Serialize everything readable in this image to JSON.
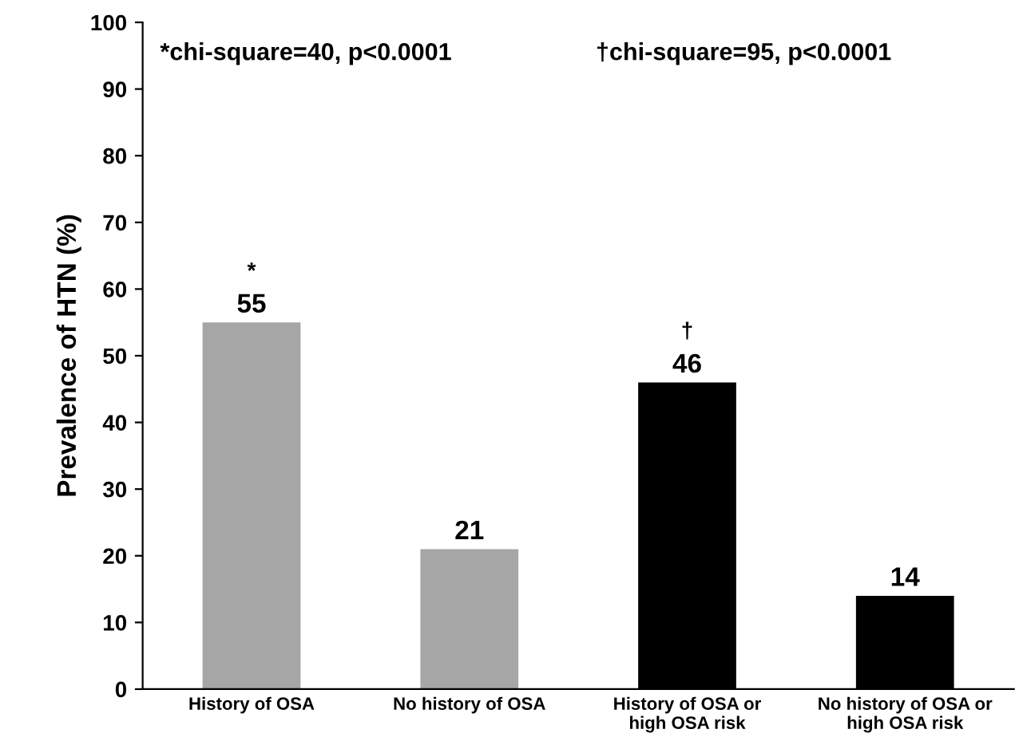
{
  "chart_data": {
    "type": "bar",
    "ylabel": "Prevalence of HTN (%)",
    "categories": [
      "History of OSA",
      "No history of OSA",
      "History of OSA or\nhigh OSA risk",
      "No history of OSA or\nhigh OSA risk"
    ],
    "values": [
      55,
      21,
      46,
      14
    ],
    "colors": [
      "#a6a6a6",
      "#a6a6a6",
      "#000000",
      "#000000"
    ],
    "ylim": [
      0,
      100
    ],
    "yticks": [
      0,
      10,
      20,
      30,
      40,
      50,
      60,
      70,
      80,
      90,
      100
    ],
    "data_labels": true,
    "grid": false,
    "annotations": [
      "*chi-square=40, p<0.0001",
      "†chi-square=95, p<0.0001",
      {
        "text": "*",
        "x": "History of OSA",
        "y": 55
      },
      {
        "text": "†",
        "x": "History of OSA or\nhigh OSA risk",
        "y": 46
      }
    ]
  }
}
